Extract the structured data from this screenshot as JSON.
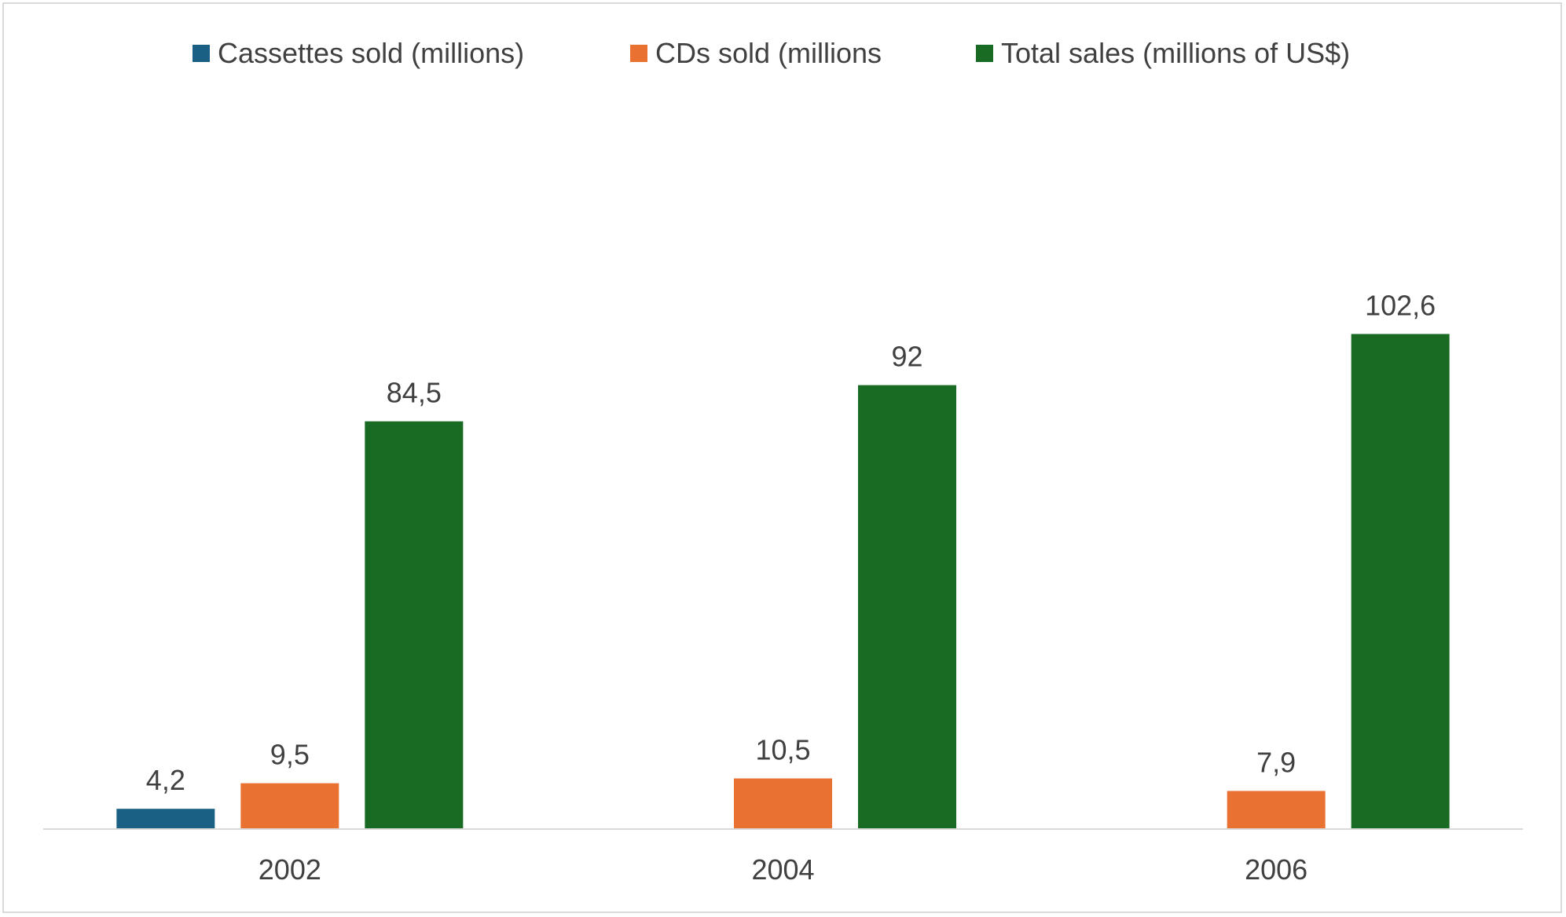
{
  "chart_data": {
    "type": "bar",
    "categories": [
      "2002",
      "2004",
      "2006"
    ],
    "series": [
      {
        "name": "Cassettes sold (millions)",
        "color": "#1a5f84",
        "values": [
          4.2,
          null,
          null
        ],
        "labels": [
          "4,2",
          "",
          ""
        ]
      },
      {
        "name": "CDs sold (millions",
        "color": "#e97132",
        "values": [
          9.5,
          10.5,
          7.9
        ],
        "labels": [
          "9,5",
          "10,5",
          "7,9"
        ]
      },
      {
        "name": "Total sales (millions of US$)",
        "color": "#196b24",
        "values": [
          84.5,
          92,
          102.6
        ],
        "labels": [
          "84,5",
          "92",
          "102,6"
        ]
      }
    ],
    "title": "",
    "xlabel": "",
    "ylabel": "",
    "ylim": [
      0,
      120
    ],
    "grid": false,
    "legend_position": "top",
    "axis_color": "#d9d9d9"
  }
}
